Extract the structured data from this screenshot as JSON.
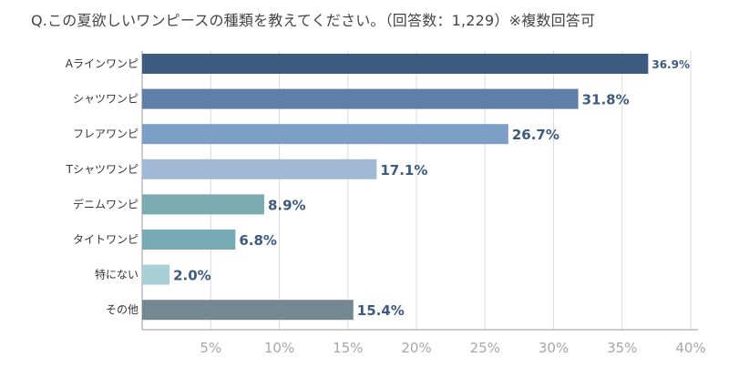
{
  "title": "Q.この夏欲しいワンピースの種類を教えてください。（回答数：1,229）※複数回答可",
  "chart_data": {
    "type": "bar",
    "orientation": "horizontal",
    "title": "Q.この夏欲しいワンピースの種類を教えてください。（回答数：1,229）※複数回答可",
    "categories": [
      "Aラインワンピ",
      "シャツワンピ",
      "フレアワンピ",
      "Tシャツワンピ",
      "デニムワンピ",
      "タイトワンピ",
      "特にない",
      "その他"
    ],
    "values": [
      36.9,
      31.8,
      26.7,
      17.1,
      8.9,
      6.8,
      2.0,
      15.4
    ],
    "value_labels": [
      "36.9%",
      "31.8%",
      "26.7%",
      "17.1%",
      "8.9%",
      "6.8%",
      "2.0%",
      "15.4%"
    ],
    "bar_colors": [
      "#3d5b80",
      "#5f7fa8",
      "#7d9fc6",
      "#a2b9d5",
      "#7aabb3",
      "#78aab6",
      "#a9cfd7",
      "#748891"
    ],
    "xlim": [
      0,
      40
    ],
    "x_ticks": [
      5,
      10,
      15,
      20,
      25,
      30,
      35,
      40
    ],
    "x_tick_labels": [
      "5%",
      "10%",
      "15%",
      "20%",
      "25%",
      "30%",
      "35%",
      "40%"
    ],
    "grid": "vertical",
    "xlabel": "",
    "ylabel": ""
  }
}
